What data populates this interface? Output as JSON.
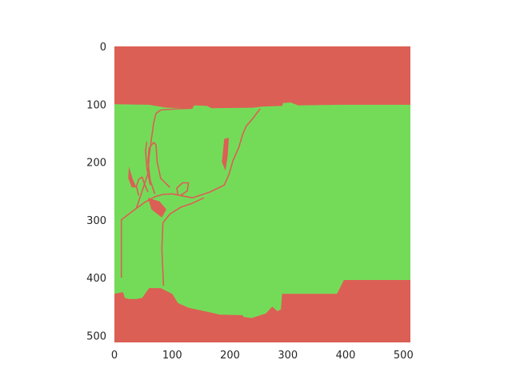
{
  "chart_data": {
    "type": "heatmap",
    "title": "",
    "xlabel": "",
    "ylabel": "",
    "xlim": [
      0,
      512
    ],
    "ylim": [
      512,
      0
    ],
    "x_ticks": [
      0,
      100,
      200,
      300,
      400,
      500
    ],
    "y_ticks": [
      0,
      100,
      200,
      300,
      400,
      500
    ],
    "grid": false,
    "colors": {
      "background": "#dc5f55",
      "foreground": "#74db59"
    },
    "image_shape": [
      512,
      512
    ],
    "description": "binary segmentation mask (2 classes)",
    "foreground_region": [
      [
        0,
        100
      ],
      [
        60,
        101
      ],
      [
        90,
        106
      ],
      [
        135,
        107
      ],
      [
        138,
        102
      ],
      [
        160,
        103
      ],
      [
        168,
        107
      ],
      [
        240,
        106
      ],
      [
        255,
        104
      ],
      [
        290,
        103
      ],
      [
        292,
        98
      ],
      [
        305,
        97
      ],
      [
        318,
        102
      ],
      [
        390,
        101
      ],
      [
        512,
        101
      ],
      [
        512,
        404
      ],
      [
        397,
        404
      ],
      [
        385,
        428
      ],
      [
        290,
        428
      ],
      [
        288,
        455
      ],
      [
        282,
        458
      ],
      [
        273,
        450
      ],
      [
        262,
        462
      ],
      [
        237,
        470
      ],
      [
        224,
        468
      ],
      [
        221,
        465
      ],
      [
        182,
        464
      ],
      [
        165,
        460
      ],
      [
        128,
        452
      ],
      [
        110,
        444
      ],
      [
        100,
        428
      ],
      [
        80,
        418
      ],
      [
        60,
        418
      ],
      [
        48,
        435
      ],
      [
        38,
        437
      ],
      [
        25,
        437
      ],
      [
        18,
        435
      ],
      [
        15,
        425
      ],
      [
        0,
        428
      ]
    ],
    "background_strokes": [
      [
        [
          38,
          280
        ],
        [
          58,
          220
        ],
        [
          60,
          190
        ],
        [
          64,
          160
        ],
        [
          68,
          132
        ],
        [
          72,
          116
        ],
        [
          80,
          110
        ],
        [
          110,
          108
        ],
        [
          135,
          107
        ]
      ],
      [
        [
          62,
          240
        ],
        [
          56,
          210
        ],
        [
          54,
          180
        ],
        [
          56,
          165
        ]
      ],
      [
        [
          12,
          400
        ],
        [
          12,
          300
        ],
        [
          30,
          286
        ],
        [
          52,
          270
        ],
        [
          70,
          260
        ],
        [
          84,
          256
        ],
        [
          100,
          255
        ],
        [
          120,
          259
        ],
        [
          135,
          262
        ],
        [
          165,
          252
        ],
        [
          190,
          240
        ],
        [
          198,
          222
        ],
        [
          205,
          198
        ],
        [
          215,
          175
        ],
        [
          222,
          152
        ],
        [
          228,
          138
        ],
        [
          240,
          124
        ],
        [
          252,
          108
        ]
      ],
      [
        [
          85,
          414
        ],
        [
          82,
          350
        ],
        [
          84,
          305
        ],
        [
          96,
          290
        ],
        [
          115,
          278
        ],
        [
          133,
          272
        ],
        [
          155,
          262
        ]
      ],
      [
        [
          70,
          255
        ],
        [
          62,
          232
        ],
        [
          58,
          200
        ],
        [
          60,
          176
        ],
        [
          68,
          166
        ],
        [
          72,
          170
        ],
        [
          74,
          200
        ],
        [
          80,
          228
        ],
        [
          96,
          244
        ]
      ],
      [
        [
          110,
          258
        ],
        [
          108,
          245
        ],
        [
          118,
          236
        ],
        [
          128,
          236
        ],
        [
          126,
          250
        ],
        [
          114,
          258
        ]
      ],
      [
        [
          42,
          258
        ],
        [
          38,
          242
        ],
        [
          42,
          230
        ],
        [
          48,
          226
        ],
        [
          52,
          238
        ],
        [
          58,
          252
        ]
      ]
    ],
    "background_patches": [
      [
        [
          25,
          208
        ],
        [
          32,
          230
        ],
        [
          38,
          244
        ],
        [
          30,
          244
        ],
        [
          24,
          228
        ]
      ],
      [
        [
          58,
          262
        ],
        [
          78,
          268
        ],
        [
          90,
          282
        ],
        [
          82,
          296
        ],
        [
          64,
          282
        ]
      ],
      [
        [
          190,
          160
        ],
        [
          198,
          158
        ],
        [
          196,
          190
        ],
        [
          192,
          215
        ],
        [
          186,
          200
        ]
      ]
    ]
  }
}
